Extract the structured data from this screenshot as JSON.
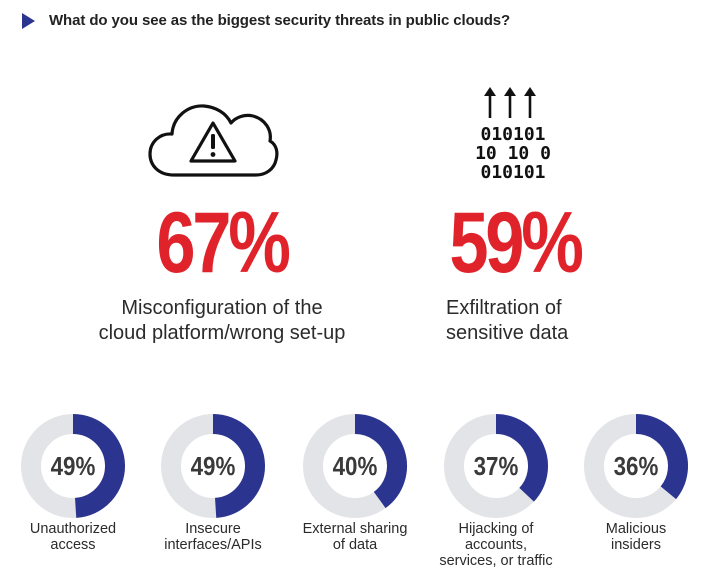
{
  "title": "What do you see as the biggest security threats in public clouds?",
  "colors": {
    "accent_red": "#e0232b",
    "donut_fill": "#2b3590",
    "donut_track": "#e3e4e7",
    "title_arrow": "#2b3590"
  },
  "icons": {
    "cloud": "cloud-warning-icon",
    "binary": "binary-upload-icon"
  },
  "highlights": [
    {
      "percent": "67%",
      "label_line1": "Misconfiguration of the",
      "label_line2": "cloud platform/wrong set-up",
      "icon": "cloud-warning-icon"
    },
    {
      "percent": "59%",
      "label_line1": "Exfiltration of",
      "label_line2": "sensitive data",
      "icon": "binary-upload-icon"
    }
  ],
  "binary_rows": [
    "010101",
    "10 10 0",
    "010101"
  ],
  "chart_data": {
    "type": "pie",
    "variant": "donut",
    "title": "What do you see as the biggest security threats in public clouds?",
    "categories": [
      "Misconfiguration of the cloud platform/wrong set-up",
      "Exfiltration of sensitive data",
      "Unauthorized access",
      "Insecure interfaces/APIs",
      "External sharing of data",
      "Hijacking of accounts, services, or traffic",
      "Malicious insiders"
    ],
    "values": [
      67,
      59,
      49,
      49,
      40,
      37,
      36
    ],
    "unit": "%"
  },
  "donuts": [
    {
      "value": 49,
      "pct": "49%",
      "lines": [
        "Unauthorized",
        "access"
      ]
    },
    {
      "value": 49,
      "pct": "49%",
      "lines": [
        "Insecure",
        "interfaces/APIs"
      ]
    },
    {
      "value": 40,
      "pct": "40%",
      "lines": [
        "External sharing",
        "of data"
      ]
    },
    {
      "value": 37,
      "pct": "37%",
      "lines": [
        "Hijacking of",
        "accounts,",
        "services, or traffic"
      ]
    },
    {
      "value": 36,
      "pct": "36%",
      "lines": [
        "Malicious",
        "insiders"
      ]
    }
  ]
}
